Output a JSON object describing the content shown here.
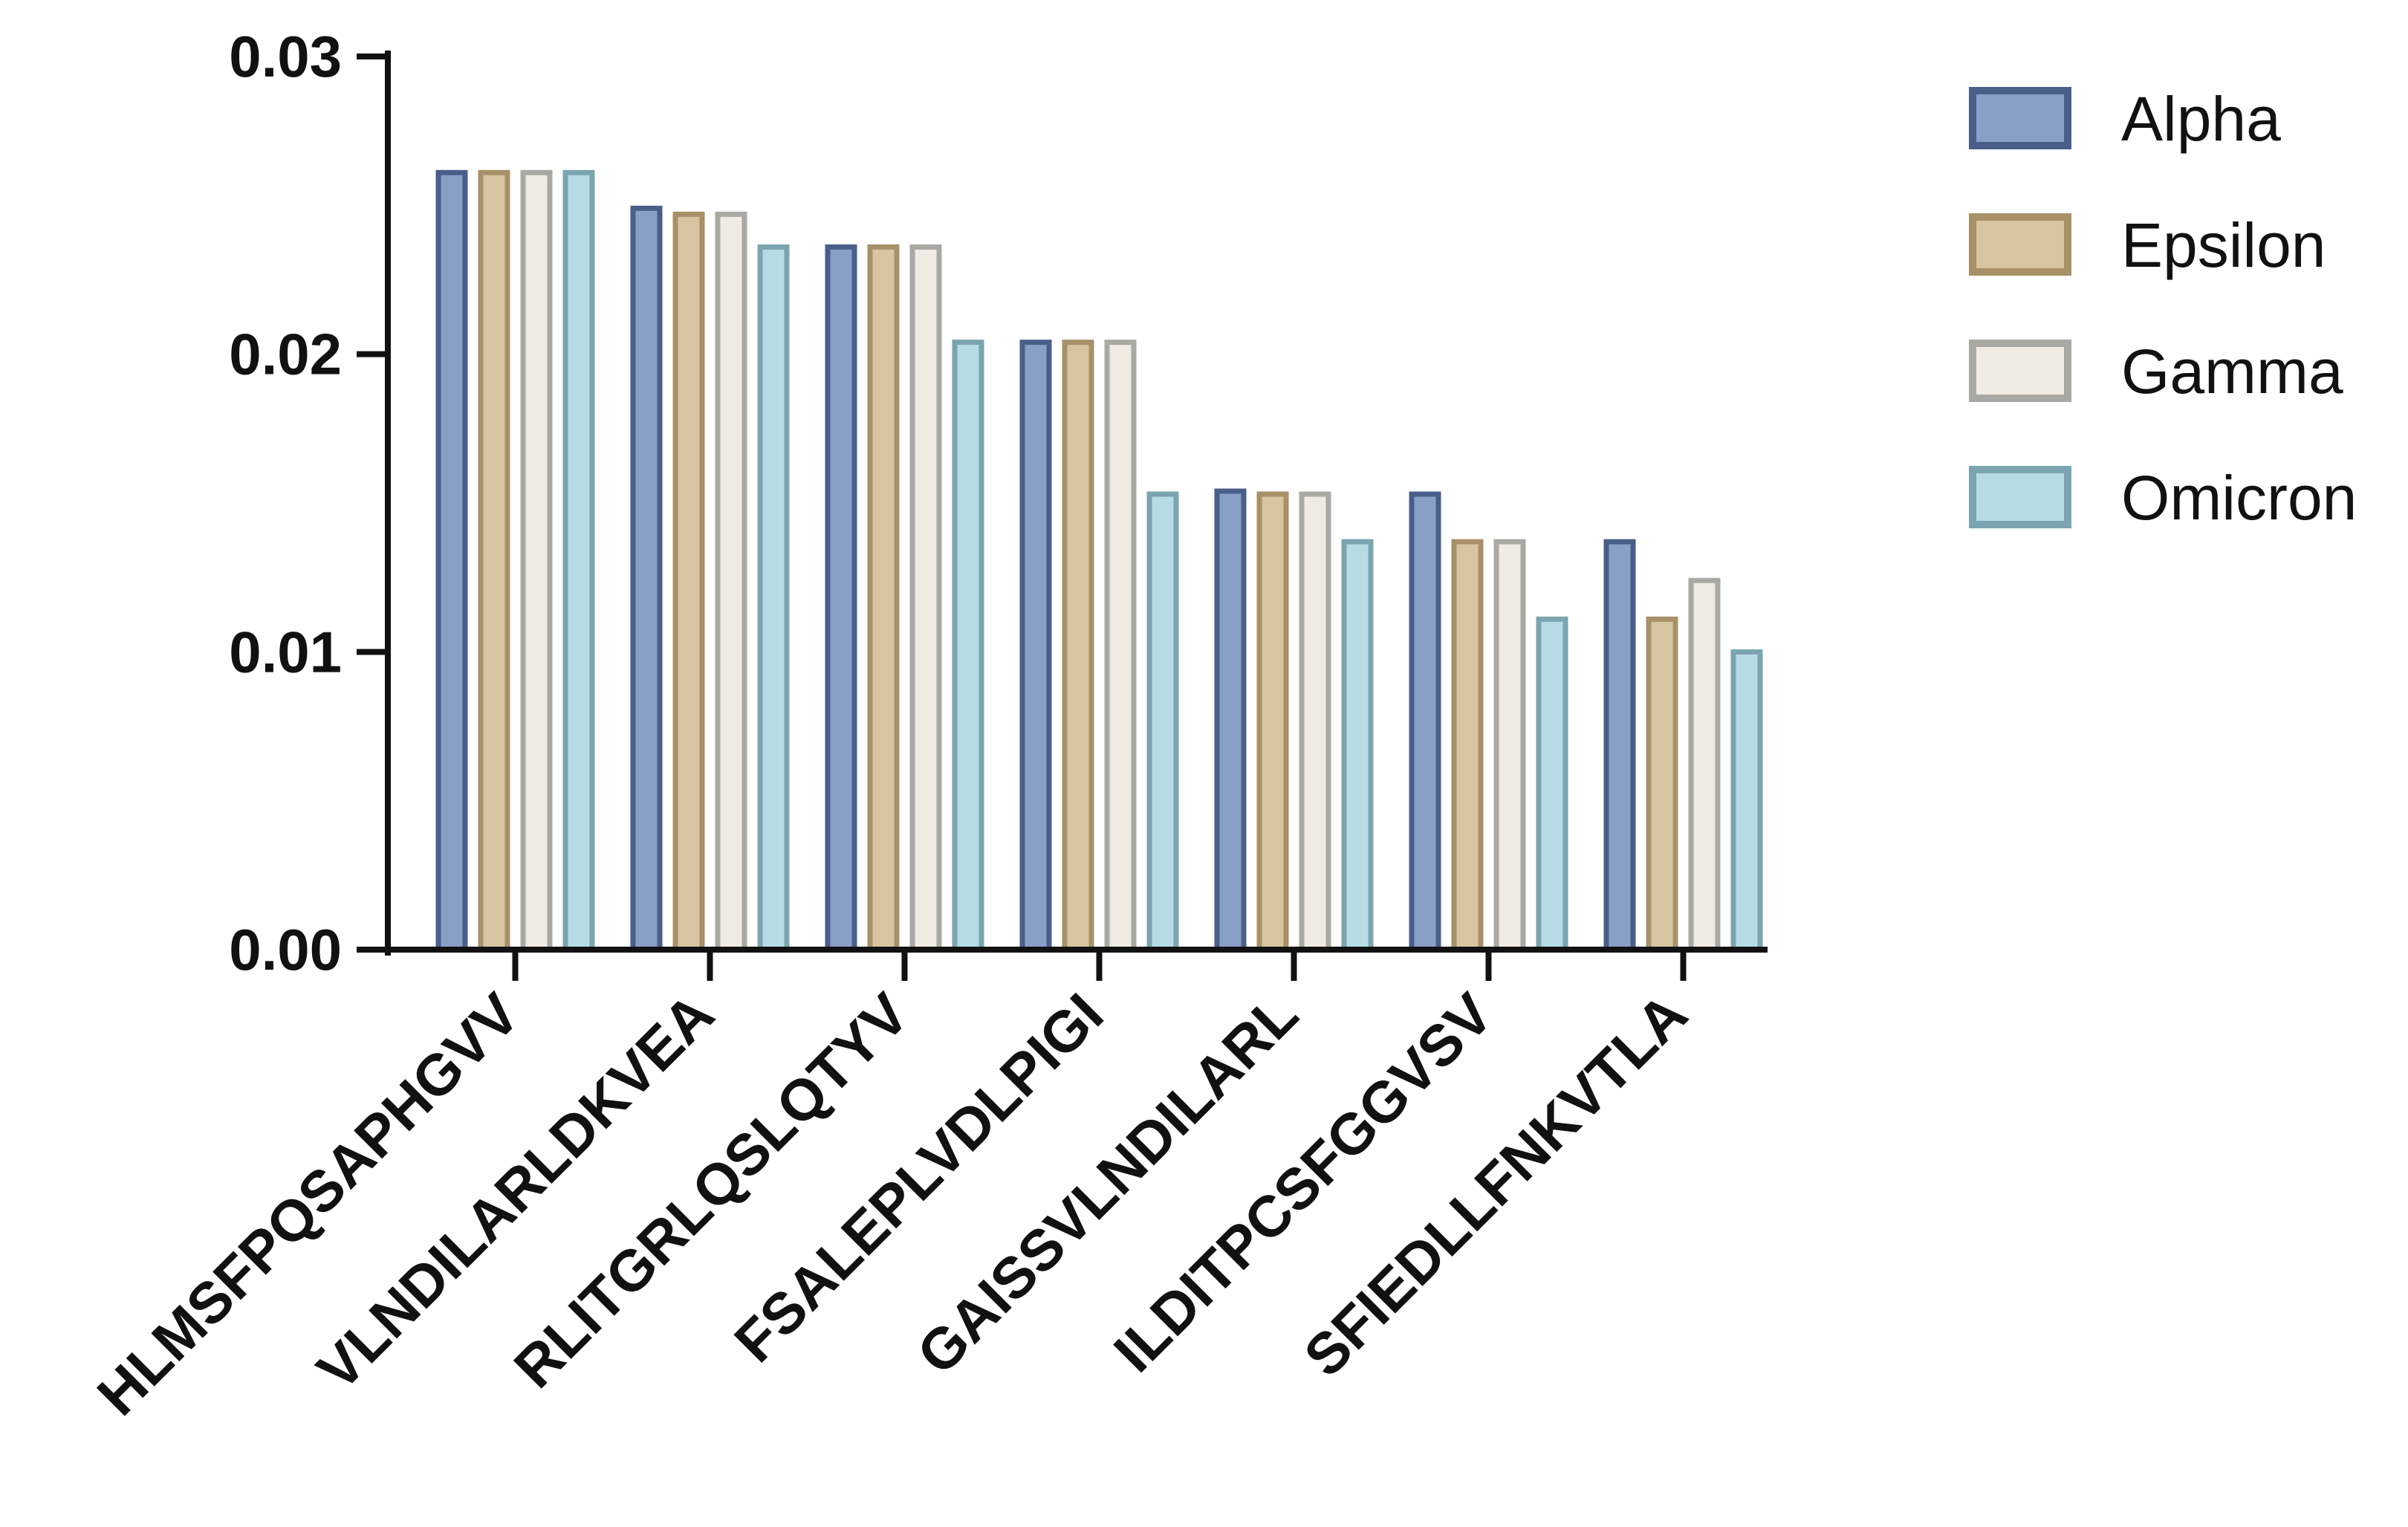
{
  "chart_data": {
    "type": "bar",
    "title": "",
    "xlabel": "",
    "ylabel": "",
    "ylim": [
      0,
      0.03
    ],
    "yticks": [
      "0.00",
      "0.01",
      "0.02",
      "0.03"
    ],
    "ytick_values": [
      0,
      0.01,
      0.02,
      0.03
    ],
    "grid": false,
    "legend_position": "top-right",
    "categories": [
      "HLMSFPQSAPHGVV",
      "VLNDILARLDKVEA",
      "RLITGRLQSLQTYV",
      "FSALEPLVDLPIGI",
      "GAISSVLNDILARL",
      "ILDITPCSFGGVSV",
      "SFIEDLLFNKVTLA"
    ],
    "series": [
      {
        "name": "Alpha",
        "fill": "#8a9fc8",
        "stroke": "#4a5e8a",
        "values": [
          0.0261,
          0.0249,
          0.0236,
          0.0204,
          0.0154,
          0.0153,
          0.0137
        ]
      },
      {
        "name": "Epsilon",
        "fill": "#d9c4a2",
        "stroke": "#a89068",
        "values": [
          0.0261,
          0.0247,
          0.0236,
          0.0204,
          0.0153,
          0.0137,
          0.0111
        ]
      },
      {
        "name": "Gamma",
        "fill": "#efebe3",
        "stroke": "#a8a8a4",
        "values": [
          0.0261,
          0.0247,
          0.0236,
          0.0204,
          0.0153,
          0.0137,
          0.0124
        ]
      },
      {
        "name": "Omicron",
        "fill": "#b7dbe6",
        "stroke": "#7aa4b0",
        "values": [
          0.0261,
          0.0236,
          0.0204,
          0.0153,
          0.0137,
          0.0111,
          0.01
        ]
      }
    ]
  }
}
